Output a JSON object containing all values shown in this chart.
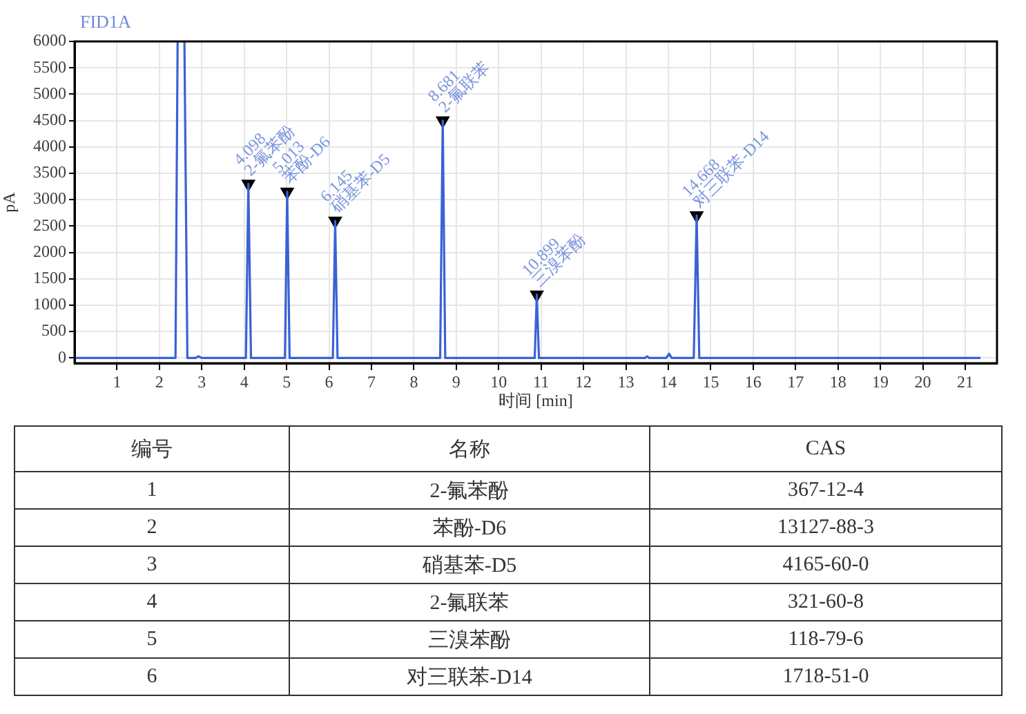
{
  "chart_data": {
    "type": "line",
    "title": "FID1A",
    "xlabel": "时间 [min]",
    "ylabel": "pA",
    "xlim": [
      0,
      21.75
    ],
    "ylim": [
      -100,
      6000
    ],
    "xticks": [
      1,
      2,
      3,
      4,
      5,
      6,
      7,
      8,
      9,
      10,
      11,
      12,
      13,
      14,
      15,
      16,
      17,
      18,
      19,
      20,
      21
    ],
    "yticks": [
      0,
      500,
      1000,
      1500,
      2000,
      2500,
      3000,
      3500,
      4000,
      4500,
      5000,
      5500,
      6000
    ],
    "grid": true,
    "series": [
      {
        "type": "line",
        "color": "#3a62d6",
        "marker": "none",
        "x": [
          0.02,
          2.38,
          2.43,
          2.51,
          2.59,
          2.66,
          2.85,
          2.92,
          3.0,
          4.04,
          4.098,
          4.16,
          4.96,
          5.013,
          5.07,
          6.09,
          6.145,
          6.2,
          8.62,
          8.681,
          8.74,
          10.85,
          10.899,
          10.95,
          13.45,
          13.5,
          13.55,
          13.95,
          14.02,
          14.08,
          14.6,
          14.668,
          14.73,
          21.36
        ],
        "values": [
          0,
          0,
          6000,
          null,
          6000,
          0,
          0,
          30,
          0,
          0,
          3300,
          0,
          0,
          3150,
          0,
          0,
          2600,
          0,
          0,
          4500,
          0,
          0,
          1200,
          0,
          0,
          30,
          0,
          0,
          80,
          0,
          0,
          2700,
          0,
          0
        ]
      },
      {
        "type": "scatter",
        "color": "#000000",
        "marker": "triangle",
        "x": [
          4.098,
          5.013,
          6.145,
          8.681,
          10.899,
          14.668
        ],
        "values": [
          3300,
          3150,
          2600,
          4500,
          1200,
          2700
        ]
      }
    ],
    "annotations": [
      {
        "text": "4.098\n2-氟苯酚",
        "x": 4.098,
        "y": 3300
      },
      {
        "text": "5.013\n苯酚-D6",
        "x": 5.013,
        "y": 3150
      },
      {
        "text": "6.145\n硝基苯-D5",
        "x": 6.145,
        "y": 2600
      },
      {
        "text": "8.681\n2-氟联苯",
        "x": 8.681,
        "y": 4500
      },
      {
        "text": "10.899\n三溴苯酚",
        "x": 10.899,
        "y": 1200
      },
      {
        "text": "14.668\n对三联苯-D14",
        "x": 14.668,
        "y": 2700
      },
      "编号",
      "名称",
      "CAS",
      "1",
      "2-氟苯酚",
      "367-12-4",
      "2",
      "苯酚-D6",
      "13127-88-3",
      "3",
      "硝基苯-D5",
      "4165-60-0",
      "4",
      "2-氟联苯",
      "321-60-8",
      "5",
      "三溴苯酚",
      "118-79-6",
      "6",
      "对三联苯-D14",
      "1718-51-0"
    ]
  }
}
